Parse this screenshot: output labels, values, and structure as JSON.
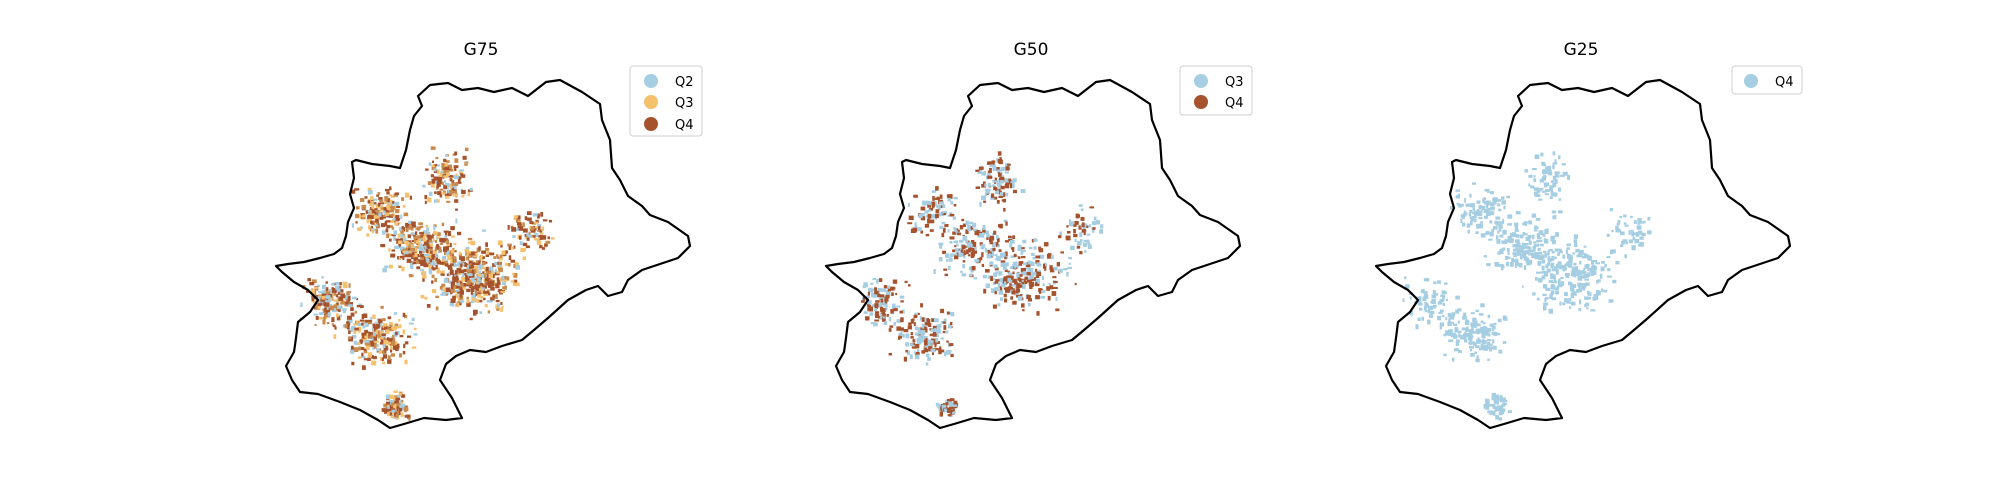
{
  "figure": {
    "panels": [
      {
        "title": "G75",
        "legend": [
          {
            "label": "Q2",
            "color": "#a6cee3"
          },
          {
            "label": "Q3",
            "color": "#f5c16c"
          },
          {
            "label": "Q4",
            "color": "#a6522c"
          }
        ]
      },
      {
        "title": "G50",
        "legend": [
          {
            "label": "Q3",
            "color": "#a6cee3"
          },
          {
            "label": "Q4",
            "color": "#a6522c"
          }
        ]
      },
      {
        "title": "G25",
        "legend": [
          {
            "label": "Q4",
            "color": "#a6cee3"
          }
        ]
      }
    ]
  }
}
